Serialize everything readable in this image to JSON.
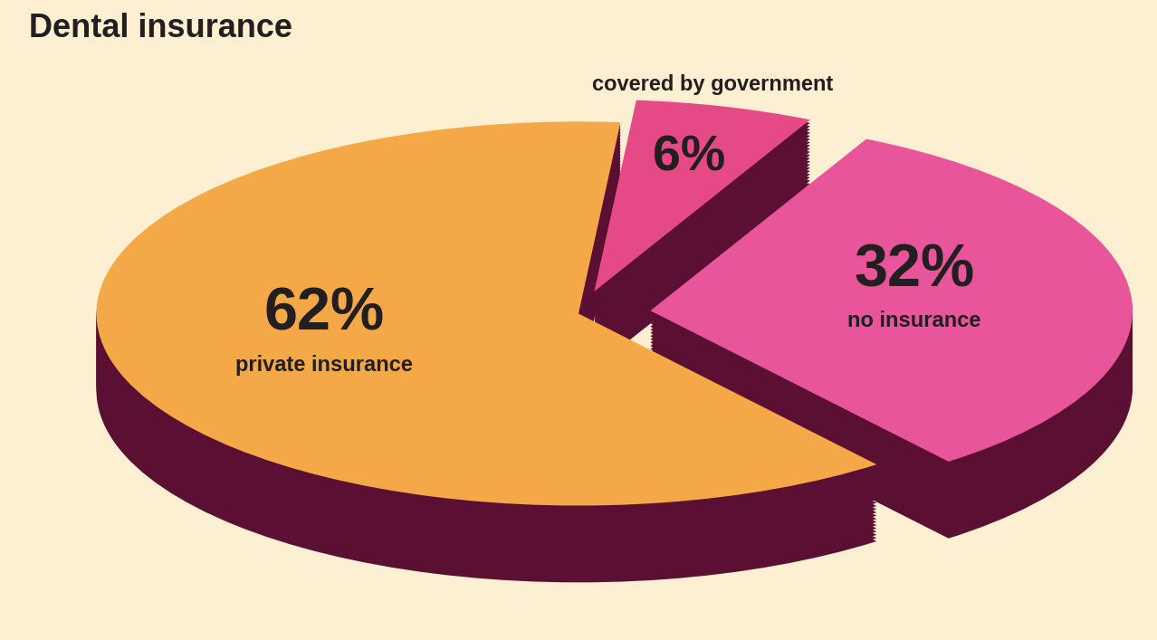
{
  "chart_data": {
    "type": "pie",
    "title": "Dental insurance",
    "categories": [
      "covered by government",
      "no insurance",
      "private insurance"
    ],
    "values": [
      6,
      32,
      62
    ],
    "value_labels": [
      "6%",
      "32%",
      "62%"
    ],
    "colors": [
      "#e64a86",
      "#e8559a",
      "#f4a847"
    ],
    "data_labels": true
  }
}
